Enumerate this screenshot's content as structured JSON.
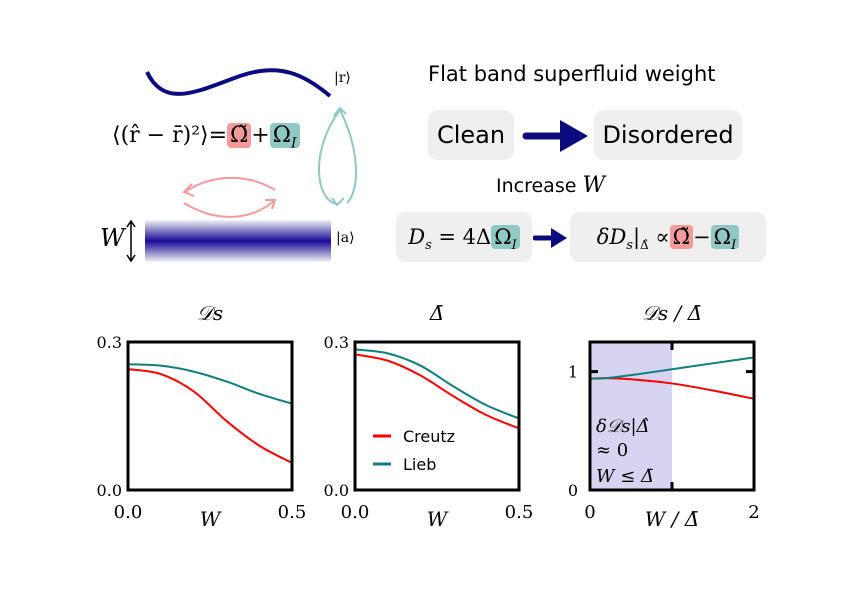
{
  "diagram": {
    "title": "Flat band superfluid weight",
    "clean_label": "Clean",
    "disordered_label": "Disordered",
    "increase_label": "Increase",
    "increase_var": "W",
    "state_r": "|r⟩",
    "state_a": "|a⟩",
    "width_label": "W",
    "spread_lhs": "⟨(r̂ − r̄)²⟩=",
    "omega_tilde": "Ω̃",
    "plus": "+",
    "omega_i": "Ω",
    "omega_i_sub": "I",
    "ds_lhs": "D",
    "ds_sub": "s",
    "ds_mid": " = 4Δ",
    "delta_ds": "δD",
    "delta_ds_sub": "s",
    "delta_ds_bar": "|",
    "delta_ds_hat": "Δ̂",
    "propto": "∝",
    "minus": "−",
    "colors": {
      "navy": "#0b0b80",
      "pink": "#f59a9a",
      "teal": "#8fc9c4",
      "box": "#efefef",
      "creutz": "#ff0000",
      "lieb": "#0f7f7a",
      "shade": "#d6d4f0"
    }
  },
  "chart_data": [
    {
      "type": "line",
      "title": "𝒟s",
      "xlabel": "W",
      "xlim": [
        0,
        0.5
      ],
      "ylim": [
        0,
        0.3
      ],
      "xticks": [
        "0.0",
        "0.5"
      ],
      "yticks": [
        "0.0",
        "0.3"
      ],
      "x": [
        0,
        0.1,
        0.2,
        0.3,
        0.4,
        0.5
      ],
      "series": [
        {
          "name": "Creutz",
          "color": "#ff0000",
          "values": [
            0.245,
            0.235,
            0.2,
            0.14,
            0.09,
            0.055
          ]
        },
        {
          "name": "Lieb",
          "color": "#0f7f7a",
          "values": [
            0.255,
            0.252,
            0.24,
            0.22,
            0.195,
            0.175
          ]
        }
      ]
    },
    {
      "type": "line",
      "title": "Δ̄",
      "xlabel": "W",
      "xlim": [
        0,
        0.5
      ],
      "ylim": [
        0,
        0.3
      ],
      "xticks": [
        "0.0",
        "0.5"
      ],
      "yticks": [
        "0.0",
        "0.3"
      ],
      "legend": "center",
      "x": [
        0,
        0.1,
        0.2,
        0.3,
        0.4,
        0.5
      ],
      "series": [
        {
          "name": "Creutz",
          "color": "#ff0000",
          "values": [
            0.275,
            0.262,
            0.232,
            0.19,
            0.152,
            0.125
          ]
        },
        {
          "name": "Lieb",
          "color": "#0f7f7a",
          "values": [
            0.285,
            0.277,
            0.252,
            0.21,
            0.172,
            0.145
          ]
        }
      ]
    },
    {
      "type": "line",
      "title": "𝒟s / Δ̄",
      "xlabel": "W / Δ̄",
      "xlim": [
        0,
        2
      ],
      "ylim": [
        0,
        1.25
      ],
      "xticks": [
        "0",
        "2"
      ],
      "yticks": [
        "0",
        "1"
      ],
      "shaded_region": [
        0,
        1
      ],
      "annotation_1": "δ𝒟s|Δ̂",
      "annotation_2": "≈ 0",
      "annotation_3": "W ≤ Δ̄",
      "x": [
        0,
        0.2,
        0.5,
        1,
        1.5,
        2
      ],
      "series": [
        {
          "name": "Creutz",
          "color": "#ff0000",
          "values": [
            0.94,
            0.945,
            0.935,
            0.9,
            0.84,
            0.77
          ]
        },
        {
          "name": "Lieb",
          "color": "#0f7f7a",
          "values": [
            0.94,
            0.945,
            0.97,
            1.02,
            1.07,
            1.12
          ]
        }
      ]
    }
  ]
}
